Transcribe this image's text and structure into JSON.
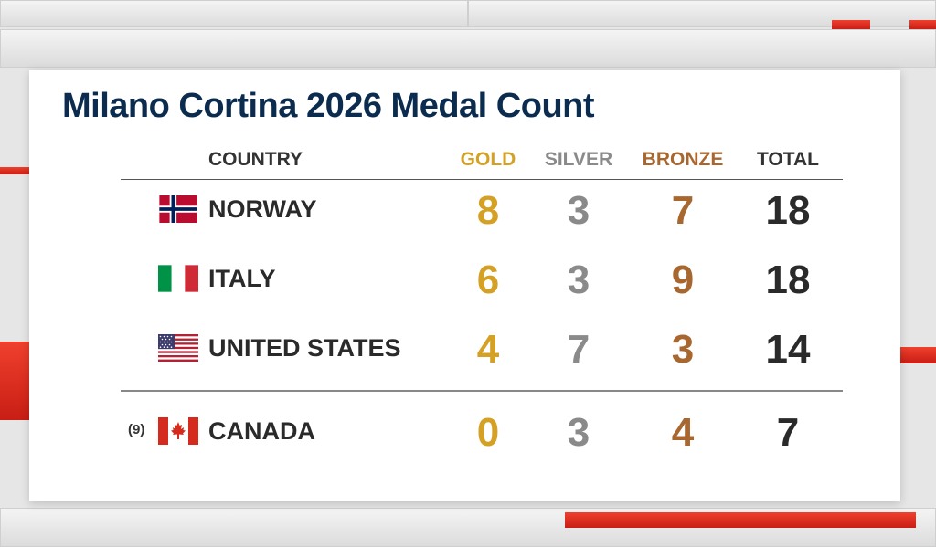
{
  "title": "Milano Cortina 2026 Medal Count",
  "headers": {
    "country": "COUNTRY",
    "gold": "GOLD",
    "silver": "SILVER",
    "bronze": "BRONZE",
    "total": "TOTAL"
  },
  "colors": {
    "title": "#0b2c4e",
    "gold": "#d4a125",
    "silver": "#8a8a8a",
    "bronze": "#a8672e",
    "accent_red": "#e0301f"
  },
  "rows": [
    {
      "flag": "norway-flag-icon",
      "country": "NORWAY",
      "gold": "8",
      "silver": "3",
      "bronze": "7",
      "total": "18"
    },
    {
      "flag": "italy-flag-icon",
      "country": "ITALY",
      "gold": "6",
      "silver": "3",
      "bronze": "9",
      "total": "18"
    },
    {
      "flag": "usa-flag-icon",
      "country": "UNITED STATES",
      "gold": "4",
      "silver": "7",
      "bronze": "3",
      "total": "14"
    },
    {
      "rank": "(9)",
      "flag": "canada-flag-icon",
      "country": "CANADA",
      "gold": "0",
      "silver": "3",
      "bronze": "4",
      "total": "7"
    }
  ]
}
